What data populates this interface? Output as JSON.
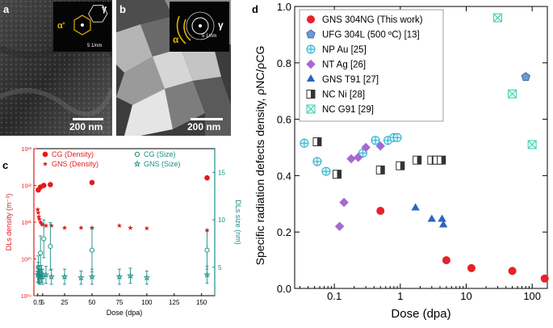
{
  "panels": {
    "a": {
      "letter": "a",
      "scale_bar": "200 nm",
      "inset_scale": "5 1/nm",
      "inset_labels": [
        "α'",
        "γ"
      ]
    },
    "b": {
      "letter": "b",
      "scale_bar": "200 nm",
      "inset_scale": "5 1/nm",
      "inset_labels": [
        "α",
        "γ"
      ]
    },
    "c": {
      "letter": "c"
    },
    "d": {
      "letter": "d"
    }
  },
  "chart_data": [
    {
      "id": "c",
      "type": "scatter",
      "xlabel": "Dose (dpa)",
      "ylabel_left": "DLs density (m⁻³)",
      "ylabel_right": "DLs size (nm)",
      "xlim": [
        -3,
        162
      ],
      "xticks": [
        0.5,
        5,
        25,
        50,
        75,
        100,
        125,
        150
      ],
      "xtick_labels": [
        "0.5",
        "5",
        "25",
        "50",
        "75",
        "100",
        "125",
        "150"
      ],
      "ylim_left_log": [
        1e+19,
        1e+23
      ],
      "ytick_labels_left": [
        "10¹⁹",
        "10²⁰",
        "10²¹",
        "10²²",
        "10²³"
      ],
      "ylim_right": [
        2,
        17.5
      ],
      "yticks_right": [
        5,
        10,
        15
      ],
      "legend": [
        {
          "label": "CG (Density)",
          "marker": "circle",
          "color": "#e31a1c"
        },
        {
          "label": "GNS (Density)",
          "marker": "star",
          "color": "#e31a1c"
        },
        {
          "label": "CG (Size)",
          "marker": "open-circle",
          "color": "#1b8f86"
        },
        {
          "label": "GNS (Size)",
          "marker": "open-star",
          "color": "#1b8f86"
        }
      ],
      "series": [
        {
          "name": "CG (Density)",
          "axis": "left",
          "x": [
            1,
            3,
            6,
            12,
            50,
            155
          ],
          "y": [
            7.5e+21,
            9e+21,
            1e+22,
            1.05e+22,
            1.2e+22,
            1.6e+22
          ]
        },
        {
          "name": "GNS (Density)",
          "axis": "left",
          "x": [
            0.5,
            1,
            1.5,
            2,
            3,
            4,
            5,
            8,
            13,
            25,
            40,
            50,
            75,
            85,
            100,
            155
          ],
          "y": [
            2.2e+21,
            1.8e+21,
            1.4e+21,
            1.2e+21,
            1e+21,
            9e+20,
            8.5e+20,
            8e+20,
            8e+20,
            7e+20,
            7e+20,
            7e+20,
            8e+20,
            7e+20,
            6.8e+20,
            6e+20
          ]
        },
        {
          "name": "CG (Size)",
          "axis": "right",
          "x": [
            1,
            3,
            6,
            12,
            50,
            155
          ],
          "y": [
            5,
            6.5,
            8,
            7.2,
            6.8,
            6.8
          ],
          "err": [
            1.2,
            1.8,
            2,
            2.5,
            2.3,
            2
          ]
        },
        {
          "name": "GNS (Size)",
          "axis": "right",
          "x": [
            0.5,
            1,
            1.5,
            2,
            3,
            4,
            5,
            8,
            13,
            25,
            40,
            50,
            75,
            85,
            100,
            155
          ],
          "y": [
            4.2,
            4.5,
            4.2,
            4,
            4,
            4.3,
            4,
            4.2,
            4,
            4,
            3.9,
            4,
            4,
            4.1,
            3.9,
            4.2
          ],
          "err": [
            0.8,
            1,
            0.9,
            0.8,
            0.8,
            0.9,
            0.8,
            0.9,
            0.8,
            0.8,
            0.7,
            0.8,
            0.8,
            0.8,
            0.7,
            0.9
          ]
        }
      ]
    },
    {
      "id": "d",
      "type": "scatter",
      "xlabel": "Dose (dpa)",
      "ylabel": "Specific radiation defects density, ρNC/ρCG",
      "xscale": "log",
      "xlim": [
        0.025,
        170
      ],
      "xticks": [
        0.1,
        1,
        10,
        100
      ],
      "xtick_labels": [
        "0.1",
        "1",
        "10",
        "100"
      ],
      "ylim": [
        0,
        1
      ],
      "yticks": [
        0.0,
        0.2,
        0.4,
        0.6,
        0.8,
        1.0
      ],
      "ytick_labels": [
        "0.0",
        "0.2",
        "0.4",
        "0.6",
        "0.8",
        "1.0"
      ],
      "series": [
        {
          "name": "GNS 304NG (This work)",
          "marker": "circle",
          "color": "#e8202a",
          "x": [
            0.5,
            5,
            12,
            50,
            155
          ],
          "y": [
            0.275,
            0.1,
            0.072,
            0.062,
            0.035
          ]
        },
        {
          "name": "UFG 304L (500 ºC) [13]",
          "marker": "pentagon",
          "color": "#6a9ad6",
          "x": [
            80
          ],
          "y": [
            0.75
          ]
        },
        {
          "name": "NP Au [25]",
          "marker": "crossed-circle",
          "color": "#1fb2cf",
          "x": [
            0.035,
            0.055,
            0.075,
            0.27,
            0.42,
            0.65,
            0.8,
            0.9
          ],
          "y": [
            0.515,
            0.45,
            0.415,
            0.48,
            0.525,
            0.525,
            0.535,
            0.535
          ]
        },
        {
          "name": "NT Ag [26]",
          "marker": "diamond",
          "color": "#a46ad2",
          "x": [
            0.12,
            0.14,
            0.18,
            0.23,
            0.3,
            0.5
          ],
          "y": [
            0.22,
            0.305,
            0.46,
            0.465,
            0.5,
            0.505
          ]
        },
        {
          "name": "GNS T91 [27]",
          "marker": "triangle",
          "color": "#2a65c4",
          "x": [
            1.7,
            3,
            4.3,
            4.5
          ],
          "y": [
            0.285,
            0.245,
            0.245,
            0.225
          ]
        },
        {
          "name": "NC Ni [28]",
          "marker": "half-square",
          "color": "#333333",
          "x": [
            0.055,
            0.11,
            0.5,
            1,
            1.8,
            3,
            3.6,
            4.2
          ],
          "y": [
            0.52,
            0.405,
            0.42,
            0.435,
            0.455,
            0.455,
            0.455,
            0.455
          ]
        },
        {
          "name": "NC G91 [29]",
          "marker": "crossed-square",
          "color": "#3ecfb0",
          "x": [
            30,
            50,
            100
          ],
          "y": [
            0.96,
            0.69,
            0.51
          ]
        }
      ]
    }
  ]
}
